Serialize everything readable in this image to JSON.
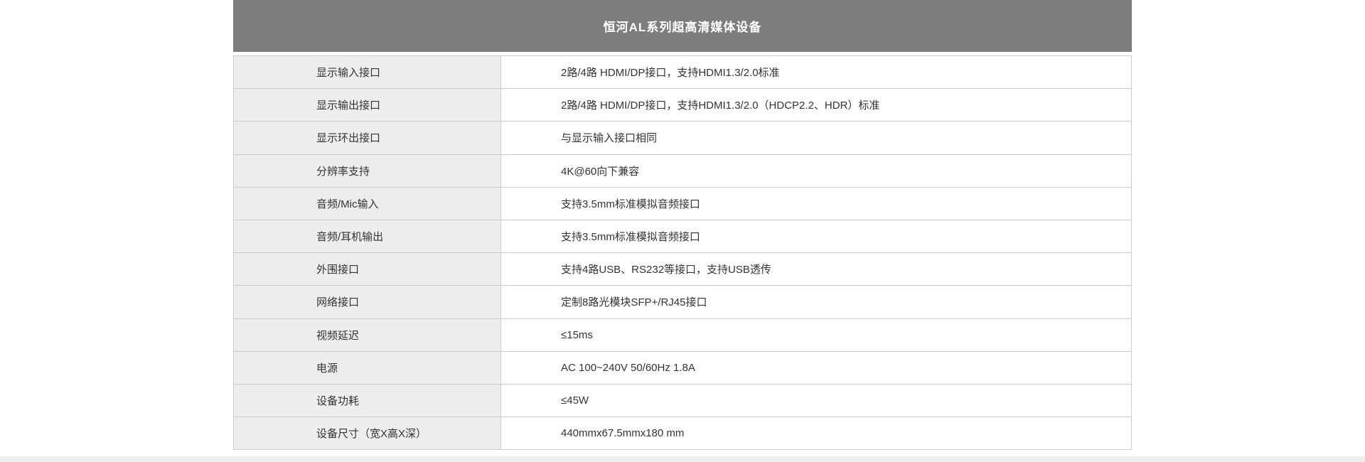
{
  "colors": {
    "header_bg": "#7d7d7d",
    "header_text": "#ffffff",
    "label_cell_bg": "#ededed",
    "value_cell_bg": "#ffffff",
    "border": "#cccccc",
    "text": "#333333"
  },
  "spec_table": {
    "title": "恒河AL系列超高清媒体设备",
    "rows": [
      {
        "label": "显示输入接口",
        "value": "2路/4路 HDMI/DP接口，支持HDMI1.3/2.0标准"
      },
      {
        "label": "显示输出接口",
        "value": "2路/4路 HDMI/DP接口，支持HDMI1.3/2.0（HDCP2.2、HDR）标准"
      },
      {
        "label": "显示环出接口",
        "value": "与显示输入接口相同"
      },
      {
        "label": "分辨率支持",
        "value": "4K@60向下兼容"
      },
      {
        "label": "音频/Mic输入",
        "value": "支持3.5mm标准模拟音频接口"
      },
      {
        "label": "音频/耳机输出",
        "value": "支持3.5mm标准模拟音频接口"
      },
      {
        "label": "外围接口",
        "value": "支持4路USB、RS232等接口，支持USB透传"
      },
      {
        "label": "网络接口",
        "value": "定制8路光模块SFP+/RJ45接口"
      },
      {
        "label": "视频延迟",
        "value": "≤15ms"
      },
      {
        "label": "电源",
        "value": "AC 100~240V 50/60Hz 1.8A"
      },
      {
        "label": "设备功耗",
        "value": "≤45W"
      },
      {
        "label": "设备尺寸（宽X高X深）",
        "value": "440mmx67.5mmx180 mm"
      }
    ]
  }
}
